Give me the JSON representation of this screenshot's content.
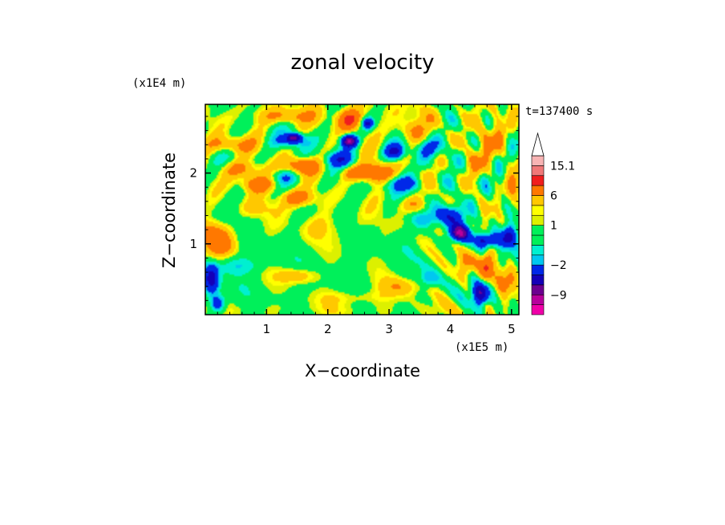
{
  "chart_data": {
    "type": "heatmap",
    "title": "zonal velocity",
    "xlabel": "X−coordinate",
    "ylabel": "Z−coordinate",
    "x_multiplier": "(x1E5 m)",
    "y_multiplier": "(x1E4 m)",
    "time_label": "t=137400 s",
    "xlim": [
      0,
      5.12
    ],
    "ylim": [
      0,
      2.97
    ],
    "x_ticks": [
      1,
      2,
      3,
      4,
      5
    ],
    "y_ticks": [
      1,
      2
    ],
    "x_tick_labels": [
      "1",
      "2",
      "3",
      "4",
      "5"
    ],
    "y_tick_labels": [
      "1",
      "2"
    ],
    "colorbar": {
      "levels": [
        -15,
        -12,
        -9,
        -6,
        -3,
        -2,
        -1,
        -0.5,
        0.5,
        1,
        1.5,
        3,
        6,
        9,
        12,
        15.1
      ],
      "tick_values": [
        15.1,
        6,
        1,
        -2,
        -9
      ],
      "tick_labels": [
        "15.1",
        "6",
        "1",
        "−2",
        "−9"
      ],
      "colors": [
        "#f000a8",
        "#b8009c",
        "#6c0090",
        "#1400b8",
        "#0028e8",
        "#00c8f0",
        "#00f0d0",
        "#00f05a",
        "#00f05a",
        "#dcf000",
        "#ffff00",
        "#ffc800",
        "#ff7800",
        "#f01e1e",
        "#f07878",
        "#f8b4b4",
        "#ffffff"
      ],
      "extend_max": true
    },
    "features": [
      {
        "x": 0.1,
        "z": 1.2,
        "a": 2.5,
        "sx": 0.3,
        "sz": 0.15
      },
      {
        "x": 0.25,
        "z": 1.0,
        "a": 4.5,
        "sx": 0.25,
        "sz": 0.18
      },
      {
        "x": 0.1,
        "z": 0.5,
        "a": -8,
        "sx": 0.12,
        "sz": 0.2
      },
      {
        "x": 0.2,
        "z": 0.15,
        "a": -6,
        "sx": 0.12,
        "sz": 0.12
      },
      {
        "x": 0.55,
        "z": 0.7,
        "a": -2,
        "sx": 0.4,
        "sz": 0.12
      },
      {
        "x": 0.4,
        "z": 2.4,
        "a": 4,
        "sx": 0.35,
        "sz": 0.12
      },
      {
        "x": 0.6,
        "z": 2.05,
        "a": 4,
        "sx": 0.35,
        "sz": 0.12
      },
      {
        "x": 0.85,
        "z": 1.85,
        "a": 5,
        "sx": 0.3,
        "sz": 0.12
      },
      {
        "x": 1.3,
        "z": 2.8,
        "a": 3,
        "sx": 0.4,
        "sz": 0.1
      },
      {
        "x": 1.4,
        "z": 2.45,
        "a": -3.5,
        "sx": 0.25,
        "sz": 0.08
      },
      {
        "x": 1.5,
        "z": 1.65,
        "a": 5,
        "sx": 0.3,
        "sz": 0.12
      },
      {
        "x": 1.25,
        "z": 1.95,
        "a": -2.5,
        "sx": 0.3,
        "sz": 0.1
      },
      {
        "x": 1.55,
        "z": 2.1,
        "a": 6,
        "sx": 0.25,
        "sz": 0.12
      },
      {
        "x": 1.5,
        "z": 0.55,
        "a": 3,
        "sx": 0.3,
        "sz": 0.1
      },
      {
        "x": 1.45,
        "z": 2.5,
        "a": -9,
        "sx": 0.12,
        "sz": 0.06
      },
      {
        "x": 2.35,
        "z": 2.45,
        "a": -12,
        "sx": 0.12,
        "sz": 0.08
      },
      {
        "x": 2.2,
        "z": 2.2,
        "a": -4,
        "sx": 0.25,
        "sz": 0.1
      },
      {
        "x": 2.35,
        "z": 2.75,
        "a": 6,
        "sx": 0.2,
        "sz": 0.15
      },
      {
        "x": 2.65,
        "z": 2.7,
        "a": -7,
        "sx": 0.1,
        "sz": 0.08
      },
      {
        "x": 2.8,
        "z": 2.0,
        "a": 6,
        "sx": 0.25,
        "sz": 0.15
      },
      {
        "x": 2.45,
        "z": 2.0,
        "a": 4,
        "sx": 0.25,
        "sz": 0.1
      },
      {
        "x": 3.1,
        "z": 2.3,
        "a": -7,
        "sx": 0.15,
        "sz": 0.1
      },
      {
        "x": 3.2,
        "z": 1.85,
        "a": -4,
        "sx": 0.3,
        "sz": 0.1
      },
      {
        "x": 3.3,
        "z": 2.6,
        "a": 3,
        "sx": 0.3,
        "sz": 0.15
      },
      {
        "x": 3.35,
        "z": 1.55,
        "a": 3,
        "sx": 0.25,
        "sz": 0.12
      },
      {
        "x": 3.65,
        "z": 2.35,
        "a": -4,
        "sx": 0.15,
        "sz": 0.12
      },
      {
        "x": 3.6,
        "z": 1.35,
        "a": -2.5,
        "sx": 0.2,
        "sz": 0.12
      },
      {
        "x": 3.65,
        "z": 0.5,
        "a": -3,
        "sx": 0.15,
        "sz": 0.12
      },
      {
        "x": 3.2,
        "z": 0.4,
        "a": 2.5,
        "sx": 0.35,
        "sz": 0.12
      },
      {
        "x": 2.5,
        "z": 0.25,
        "a": 1.5,
        "sx": 0.6,
        "sz": 0.1
      },
      {
        "x": 4.15,
        "z": 1.15,
        "a": -11,
        "sx": 0.15,
        "sz": 0.1
      },
      {
        "x": 4.0,
        "z": 1.4,
        "a": -5,
        "sx": 0.25,
        "sz": 0.15
      },
      {
        "x": 4.25,
        "z": 0.7,
        "a": 4,
        "sx": 0.15,
        "sz": 0.2
      },
      {
        "x": 4.5,
        "z": 0.3,
        "a": -9,
        "sx": 0.12,
        "sz": 0.15
      },
      {
        "x": 4.6,
        "z": 0.7,
        "a": 6,
        "sx": 0.1,
        "sz": 0.2
      },
      {
        "x": 4.6,
        "z": 1.05,
        "a": -7,
        "sx": 0.2,
        "sz": 0.1
      },
      {
        "x": 4.95,
        "z": 1.1,
        "a": -8,
        "sx": 0.12,
        "sz": 0.15
      },
      {
        "x": 4.95,
        "z": 0.5,
        "a": 4,
        "sx": 0.15,
        "sz": 0.2
      },
      {
        "x": 4.75,
        "z": 2.5,
        "a": 3,
        "sx": 0.3,
        "sz": 0.25
      },
      {
        "x": 4.3,
        "z": 2.1,
        "a": 3,
        "sx": 0.2,
        "sz": 0.2
      },
      {
        "x": 5.05,
        "z": 1.75,
        "a": 4,
        "sx": 0.15,
        "sz": 0.25
      },
      {
        "x": 0.9,
        "z": 1.5,
        "a": 1.3,
        "sx": 0.45,
        "sz": 0.12
      },
      {
        "x": 2.0,
        "z": 1.25,
        "a": 1.3,
        "sx": 0.6,
        "sz": 0.2
      }
    ]
  }
}
